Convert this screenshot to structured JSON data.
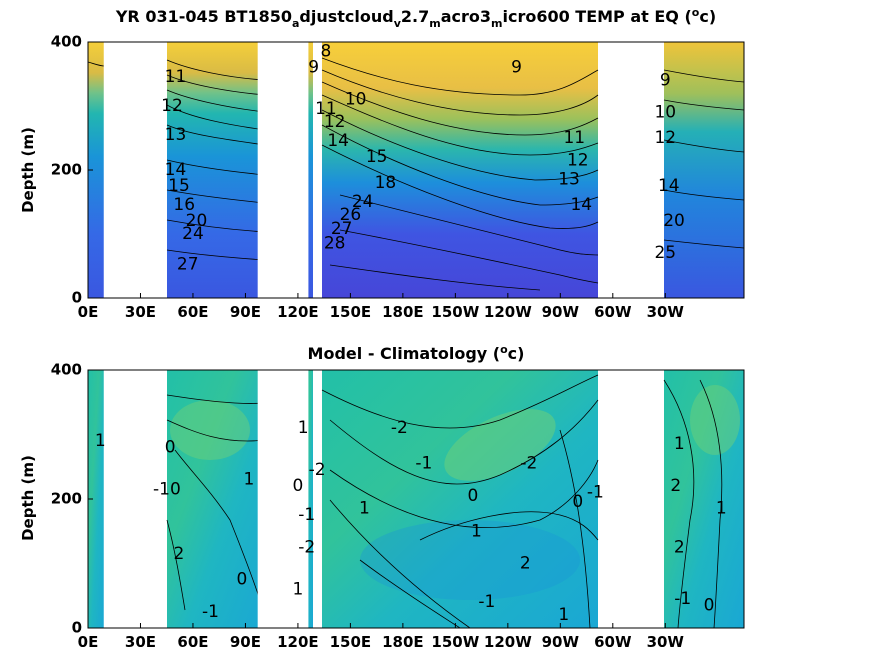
{
  "figure": {
    "top_title": {
      "prefix": "YR 031-045 BT1850",
      "parts": [
        {
          "text": "a",
          "sub": true
        },
        {
          "text": "djustcloud",
          "sub": false
        },
        {
          "text": "v",
          "sub": true
        },
        {
          "text": "2.7",
          "sub": false
        },
        {
          "text": "m",
          "sub": true
        },
        {
          "text": "acro3",
          "sub": false
        },
        {
          "text": "m",
          "sub": true
        },
        {
          "text": "icro600 TEMP at EQ (",
          "sub": false
        }
      ],
      "unit_sup": "o",
      "unit_tail": "c)"
    },
    "bottom_title": {
      "text": "Model - Climatology (",
      "unit_sup": "o",
      "unit_tail": "c)"
    }
  },
  "chart_data": [
    {
      "type": "heatmap",
      "panel": "top",
      "ylabel": "Depth (m)",
      "xlabel": "",
      "x_ticks": [
        "0E",
        "30E",
        "60E",
        "90E",
        "120E",
        "150E",
        "180E",
        "150W",
        "120W",
        "90W",
        "60W",
        "30W"
      ],
      "y_ticks": [
        "0",
        "200",
        "400"
      ],
      "xlim": [
        0,
        375
      ],
      "ylim": [
        400,
        0
      ],
      "land_gaps_lon": [
        [
          9,
          42
        ],
        [
          97,
          112
        ],
        [
          122,
          126
        ],
        [
          295,
          322
        ]
      ],
      "colormap": "parula",
      "contour_labels": [
        {
          "text": "27",
          "lon": 57,
          "depth": 52
        },
        {
          "text": "24",
          "lon": 60,
          "depth": 100
        },
        {
          "text": "20",
          "lon": 62,
          "depth": 120
        },
        {
          "text": "16",
          "lon": 55,
          "depth": 145
        },
        {
          "text": "15",
          "lon": 52,
          "depth": 175
        },
        {
          "text": "14",
          "lon": 50,
          "depth": 200
        },
        {
          "text": "13",
          "lon": 50,
          "depth": 255
        },
        {
          "text": "12",
          "lon": 48,
          "depth": 300
        },
        {
          "text": "11",
          "lon": 50,
          "depth": 345
        },
        {
          "text": "28",
          "lon": 141,
          "depth": 85
        },
        {
          "text": "27",
          "lon": 145,
          "depth": 108
        },
        {
          "text": "26",
          "lon": 150,
          "depth": 130
        },
        {
          "text": "24",
          "lon": 157,
          "depth": 150
        },
        {
          "text": "18",
          "lon": 170,
          "depth": 180
        },
        {
          "text": "15",
          "lon": 165,
          "depth": 220
        },
        {
          "text": "14",
          "lon": 143,
          "depth": 245
        },
        {
          "text": "12",
          "lon": 141,
          "depth": 275
        },
        {
          "text": "11",
          "lon": 136,
          "depth": 295
        },
        {
          "text": "10",
          "lon": 153,
          "depth": 310
        },
        {
          "text": "9",
          "lon": 129,
          "depth": 360
        },
        {
          "text": "8",
          "lon": 136,
          "depth": 385
        },
        {
          "text": "14",
          "lon": 282,
          "depth": 145
        },
        {
          "text": "13",
          "lon": 275,
          "depth": 185
        },
        {
          "text": "12",
          "lon": 280,
          "depth": 215
        },
        {
          "text": "11",
          "lon": 278,
          "depth": 250
        },
        {
          "text": "9",
          "lon": 245,
          "depth": 360
        },
        {
          "text": "25",
          "lon": 330,
          "depth": 70
        },
        {
          "text": "20",
          "lon": 335,
          "depth": 120
        },
        {
          "text": "14",
          "lon": 332,
          "depth": 175
        },
        {
          "text": "12",
          "lon": 330,
          "depth": 250
        },
        {
          "text": "10",
          "lon": 330,
          "depth": 290
        },
        {
          "text": "9",
          "lon": 330,
          "depth": 340
        }
      ]
    },
    {
      "type": "heatmap",
      "panel": "bottom",
      "ylabel": "Depth (m)",
      "xlabel": "",
      "x_ticks": [
        "0E",
        "30E",
        "60E",
        "90E",
        "120E",
        "150E",
        "180E",
        "150W",
        "120W",
        "90W",
        "60W",
        "30W"
      ],
      "y_ticks": [
        "0",
        "200",
        "400"
      ],
      "xlim": [
        0,
        375
      ],
      "ylim": [
        400,
        0
      ],
      "land_gaps_lon": [
        [
          9,
          42
        ],
        [
          97,
          112
        ],
        [
          122,
          126
        ],
        [
          295,
          322
        ]
      ],
      "colormap": "parula",
      "contour_labels": [
        {
          "text": "-1",
          "lon": 70,
          "depth": 25
        },
        {
          "text": "0",
          "lon": 88,
          "depth": 75
        },
        {
          "text": "2",
          "lon": 52,
          "depth": 115
        },
        {
          "text": "1",
          "lon": 92,
          "depth": 230
        },
        {
          "text": "0",
          "lon": 50,
          "depth": 215
        },
        {
          "text": "-1",
          "lon": 42,
          "depth": 215
        },
        {
          "text": "0",
          "lon": 47,
          "depth": 280
        },
        {
          "text": "1",
          "lon": 7,
          "depth": 290
        },
        {
          "text": "1",
          "lon": 120,
          "depth": 60
        },
        {
          "text": "-2",
          "lon": 125,
          "depth": 125
        },
        {
          "text": "-1",
          "lon": 125,
          "depth": 175
        },
        {
          "text": "0",
          "lon": 120,
          "depth": 220
        },
        {
          "text": "-2",
          "lon": 131,
          "depth": 245
        },
        {
          "text": "1",
          "lon": 123,
          "depth": 310
        },
        {
          "text": "1",
          "lon": 158,
          "depth": 185
        },
        {
          "text": "0",
          "lon": 220,
          "depth": 205
        },
        {
          "text": "1",
          "lon": 222,
          "depth": 150
        },
        {
          "text": "2",
          "lon": 250,
          "depth": 100
        },
        {
          "text": "-1",
          "lon": 228,
          "depth": 40
        },
        {
          "text": "-1",
          "lon": 192,
          "depth": 255
        },
        {
          "text": "-2",
          "lon": 178,
          "depth": 310
        },
        {
          "text": "-2",
          "lon": 252,
          "depth": 255
        },
        {
          "text": "0",
          "lon": 280,
          "depth": 195
        },
        {
          "text": "-1",
          "lon": 290,
          "depth": 210
        },
        {
          "text": "1",
          "lon": 272,
          "depth": 20
        },
        {
          "text": "-1",
          "lon": 340,
          "depth": 45
        },
        {
          "text": "0",
          "lon": 355,
          "depth": 35
        },
        {
          "text": "1",
          "lon": 362,
          "depth": 185
        },
        {
          "text": "2",
          "lon": 338,
          "depth": 125
        },
        {
          "text": "2",
          "lon": 336,
          "depth": 220
        },
        {
          "text": "1",
          "lon": 338,
          "depth": 285
        }
      ]
    }
  ]
}
